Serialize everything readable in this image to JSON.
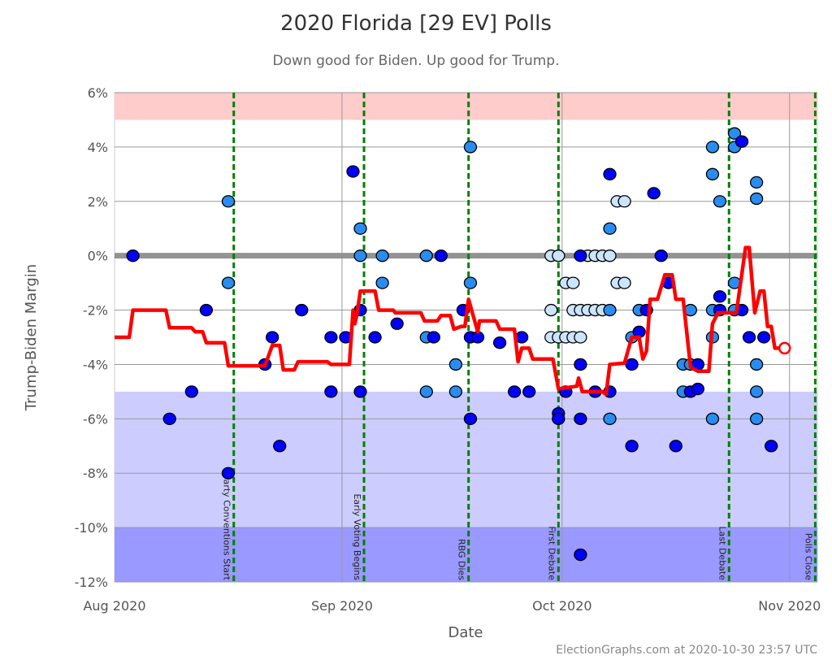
{
  "title": "2020 Florida [29 EV] Polls",
  "subtitle": "Down good for Biden. Up good for Trump.",
  "footer": "ElectionGraphs.com at 2020-10-30 23:57 UTC",
  "chart_data": {
    "type": "scatter",
    "xlabel": "Date",
    "ylabel": "Trump-Biden Margin",
    "xlim": [
      "2020-08-01",
      "2020-11-04 12:00"
    ],
    "ylim": [
      -12,
      6
    ],
    "grid": true,
    "y_ticks": [
      6,
      4,
      2,
      0,
      -2,
      -4,
      -6,
      -8,
      -10,
      -12
    ],
    "y_tick_labels": [
      "6%",
      "4%",
      "2%",
      "0%",
      "-2%",
      "-4%",
      "-6%",
      "-8%",
      "-10%",
      "-12%"
    ],
    "x_ticks": [
      {
        "date": "2020-08-01",
        "label": "Aug 2020"
      },
      {
        "date": "2020-09-01",
        "label": "Sep 2020"
      },
      {
        "date": "2020-10-01",
        "label": "Oct 2020"
      },
      {
        "date": "2020-11-01",
        "label": "Nov 2020"
      }
    ],
    "bands": [
      {
        "from": 5,
        "to": 6,
        "color": "#ffcccc"
      },
      {
        "from": -10,
        "to": -5,
        "color": "#ccccff"
      },
      {
        "from": -12,
        "to": -10,
        "color": "#9999ff"
      }
    ],
    "colors": {
      "dark": "#0000ff",
      "mid": "#2a8cf0",
      "light": "#cce5ff",
      "trend": "#ff0000",
      "event": "#008000",
      "zero": "#888888"
    },
    "events": [
      {
        "date": "2020-08-17 06:00",
        "label": "Party Conventions Start"
      },
      {
        "date": "2020-09-04 00:00",
        "label": "Early Voting Begins"
      },
      {
        "date": "2020-09-18 06:00",
        "label": "RBG Dies"
      },
      {
        "date": "2020-09-30 12:00",
        "label": "First Debate"
      },
      {
        "date": "2020-10-23 18:00",
        "label": "Last Debate"
      },
      {
        "date": "2020-11-04 12:00",
        "label": "Polls Close"
      }
    ],
    "polls": [
      [
        "2020-08-03",
        0,
        "dark"
      ],
      [
        "2020-08-08",
        -6,
        "dark"
      ],
      [
        "2020-08-11",
        -5,
        "dark"
      ],
      [
        "2020-08-13",
        -2,
        "dark"
      ],
      [
        "2020-08-16",
        2,
        "mid"
      ],
      [
        "2020-08-16",
        -1,
        "mid"
      ],
      [
        "2020-08-16",
        -8,
        "dark"
      ],
      [
        "2020-08-21",
        -4,
        "dark"
      ],
      [
        "2020-08-22",
        -3,
        "dark"
      ],
      [
        "2020-08-23",
        -7,
        "dark"
      ],
      [
        "2020-08-26",
        -2,
        "dark"
      ],
      [
        "2020-08-30",
        -3,
        "dark"
      ],
      [
        "2020-08-30",
        -5,
        "dark"
      ],
      [
        "2020-09-01",
        -3,
        "dark"
      ],
      [
        "2020-09-02",
        3.1,
        "dark"
      ],
      [
        "2020-09-03",
        -2,
        "dark"
      ],
      [
        "2020-09-03",
        -5,
        "dark"
      ],
      [
        "2020-09-03",
        1,
        "mid"
      ],
      [
        "2020-09-03",
        0,
        "mid"
      ],
      [
        "2020-09-05",
        -3,
        "dark"
      ],
      [
        "2020-09-06",
        0,
        "mid"
      ],
      [
        "2020-09-06",
        -1,
        "mid"
      ],
      [
        "2020-09-08",
        -2.5,
        "dark"
      ],
      [
        "2020-09-12",
        0,
        "mid"
      ],
      [
        "2020-09-12",
        -3,
        "mid"
      ],
      [
        "2020-09-12",
        -5,
        "mid"
      ],
      [
        "2020-09-13",
        -3,
        "dark"
      ],
      [
        "2020-09-14",
        0,
        "dark"
      ],
      [
        "2020-09-16",
        -4,
        "mid"
      ],
      [
        "2020-09-16",
        -5,
        "mid"
      ],
      [
        "2020-09-17",
        -2,
        "dark"
      ],
      [
        "2020-09-18",
        4,
        "mid"
      ],
      [
        "2020-09-18",
        -1,
        "mid"
      ],
      [
        "2020-09-18",
        -6,
        "dark"
      ],
      [
        "2020-09-18",
        -3,
        "dark"
      ],
      [
        "2020-09-19",
        -3,
        "dark"
      ],
      [
        "2020-09-22",
        -3.2,
        "dark"
      ],
      [
        "2020-09-24",
        -5,
        "dark"
      ],
      [
        "2020-09-25",
        -3,
        "dark"
      ],
      [
        "2020-09-26",
        -5,
        "dark"
      ],
      [
        "2020-09-29",
        0,
        "light"
      ],
      [
        "2020-09-30",
        0,
        "light"
      ],
      [
        "2020-09-29",
        -2,
        "light"
      ],
      [
        "2020-09-29",
        -3,
        "light"
      ],
      [
        "2020-09-30",
        -3,
        "light"
      ],
      [
        "2020-09-30",
        -5.8,
        "dark"
      ],
      [
        "2020-09-30",
        -6,
        "dark"
      ],
      [
        "2020-10-01",
        -5,
        "dark"
      ],
      [
        "2020-10-01",
        -1,
        "light"
      ],
      [
        "2020-10-02",
        -1,
        "light"
      ],
      [
        "2020-10-01",
        -3,
        "light"
      ],
      [
        "2020-10-02",
        -3,
        "light"
      ],
      [
        "2020-10-03",
        -3,
        "light"
      ],
      [
        "2020-10-02",
        -2,
        "light"
      ],
      [
        "2020-10-03",
        -2,
        "light"
      ],
      [
        "2020-10-04",
        -2,
        "light"
      ],
      [
        "2020-10-05",
        -2,
        "light"
      ],
      [
        "2020-10-06",
        -2,
        "light"
      ],
      [
        "2020-10-04",
        0,
        "light"
      ],
      [
        "2020-10-05",
        0,
        "light"
      ],
      [
        "2020-10-06",
        0,
        "light"
      ],
      [
        "2020-10-07",
        0,
        "light"
      ],
      [
        "2020-10-03",
        0,
        "dark"
      ],
      [
        "2020-10-03",
        -4,
        "dark"
      ],
      [
        "2020-10-03",
        -6,
        "dark"
      ],
      [
        "2020-10-03",
        -11,
        "dark"
      ],
      [
        "2020-10-05",
        -5,
        "dark"
      ],
      [
        "2020-10-07",
        -5,
        "dark"
      ],
      [
        "2020-10-07",
        -6,
        "mid"
      ],
      [
        "2020-10-07",
        1,
        "mid"
      ],
      [
        "2020-10-07",
        3,
        "dark"
      ],
      [
        "2020-10-07",
        -2,
        "mid"
      ],
      [
        "2020-10-08",
        2,
        "light"
      ],
      [
        "2020-10-09",
        2,
        "light"
      ],
      [
        "2020-10-08",
        -1,
        "light"
      ],
      [
        "2020-10-09",
        -1,
        "light"
      ],
      [
        "2020-10-10",
        -7,
        "dark"
      ],
      [
        "2020-10-10",
        -4,
        "dark"
      ],
      [
        "2020-10-10",
        -3,
        "mid"
      ],
      [
        "2020-10-11",
        -2.8,
        "dark"
      ],
      [
        "2020-10-11",
        -2,
        "mid"
      ],
      [
        "2020-10-12",
        -2,
        "dark"
      ],
      [
        "2020-10-13",
        2.3,
        "dark"
      ],
      [
        "2020-10-14",
        0,
        "dark"
      ],
      [
        "2020-10-15",
        -1,
        "dark"
      ],
      [
        "2020-10-16",
        -7,
        "dark"
      ],
      [
        "2020-10-18",
        -2,
        "mid"
      ],
      [
        "2020-10-17",
        -4,
        "mid"
      ],
      [
        "2020-10-18",
        -4,
        "mid"
      ],
      [
        "2020-10-19",
        -4,
        "dark"
      ],
      [
        "2020-10-17",
        -5,
        "mid"
      ],
      [
        "2020-10-18",
        -5,
        "dark"
      ],
      [
        "2020-10-19",
        -4.9,
        "dark"
      ],
      [
        "2020-10-21",
        4,
        "mid"
      ],
      [
        "2020-10-21",
        3,
        "mid"
      ],
      [
        "2020-10-22",
        2,
        "mid"
      ],
      [
        "2020-10-21",
        -2,
        "mid"
      ],
      [
        "2020-10-22",
        -2,
        "dark"
      ],
      [
        "2020-10-22",
        -1.5,
        "dark"
      ],
      [
        "2020-10-21",
        -3,
        "mid"
      ],
      [
        "2020-10-21",
        -6,
        "mid"
      ],
      [
        "2020-10-24",
        4.5,
        "mid"
      ],
      [
        "2020-10-24",
        4,
        "mid"
      ],
      [
        "2020-10-25",
        4.2,
        "dark"
      ],
      [
        "2020-10-24",
        -1,
        "mid"
      ],
      [
        "2020-10-24",
        -2,
        "mid"
      ],
      [
        "2020-10-25",
        -2,
        "dark"
      ],
      [
        "2020-10-26",
        -3,
        "dark"
      ],
      [
        "2020-10-27",
        -4,
        "mid"
      ],
      [
        "2020-10-27",
        -5,
        "mid"
      ],
      [
        "2020-10-27",
        -6,
        "mid"
      ],
      [
        "2020-10-27",
        2.7,
        "mid"
      ],
      [
        "2020-10-27",
        2.1,
        "mid"
      ],
      [
        "2020-10-28",
        -3,
        "dark"
      ],
      [
        "2020-10-29",
        -7,
        "dark"
      ]
    ],
    "trend": [
      [
        "2020-08-01 00:00",
        -3
      ],
      [
        "2020-08-03 00:00",
        -3
      ],
      [
        "2020-08-03 12:00",
        -2
      ],
      [
        "2020-08-08 00:00",
        -2
      ],
      [
        "2020-08-08 12:00",
        -2.65
      ],
      [
        "2020-08-11 12:00",
        -2.65
      ],
      [
        "2020-08-12 00:00",
        -2.8
      ],
      [
        "2020-08-13 00:00",
        -2.8
      ],
      [
        "2020-08-13 12:00",
        -3.2
      ],
      [
        "2020-08-16 00:00",
        -3.2
      ],
      [
        "2020-08-16 12:00",
        -4.05
      ],
      [
        "2020-08-21 12:00",
        -4.05
      ],
      [
        "2020-08-22 12:00",
        -3.3
      ],
      [
        "2020-08-23 12:00",
        -3.3
      ],
      [
        "2020-08-24 00:00",
        -4.2
      ],
      [
        "2020-08-25 12:00",
        -4.2
      ],
      [
        "2020-08-26 00:00",
        -3.9
      ],
      [
        "2020-08-30 00:00",
        -3.9
      ],
      [
        "2020-08-30 12:00",
        -4
      ],
      [
        "2020-09-02 00:00",
        -4
      ],
      [
        "2020-09-02 12:00",
        -2
      ],
      [
        "2020-09-02 18:00",
        -2.5
      ],
      [
        "2020-09-03 00:00",
        -2.2
      ],
      [
        "2020-09-03 12:00",
        -1.3
      ],
      [
        "2020-09-05 12:00",
        -1.3
      ],
      [
        "2020-09-06 00:00",
        -2
      ],
      [
        "2020-09-08 00:00",
        -2
      ],
      [
        "2020-09-08 06:00",
        -2.1
      ],
      [
        "2020-09-11 18:00",
        -2.1
      ],
      [
        "2020-09-12 06:00",
        -2.4
      ],
      [
        "2020-09-14 00:00",
        -2.4
      ],
      [
        "2020-09-14 12:00",
        -2.2
      ],
      [
        "2020-09-15 18:00",
        -2.2
      ],
      [
        "2020-09-16 06:00",
        -2.7
      ],
      [
        "2020-09-17 06:00",
        -2.6
      ],
      [
        "2020-09-17 18:00",
        -2.6
      ],
      [
        "2020-09-18 06:00",
        -1.6
      ],
      [
        "2020-09-19 12:00",
        -2.8
      ],
      [
        "2020-09-19 18:00",
        -2.4
      ],
      [
        "2020-09-22 00:00",
        -2.4
      ],
      [
        "2020-09-22 12:00",
        -2.7
      ],
      [
        "2020-09-24 12:00",
        -2.7
      ],
      [
        "2020-09-25 00:00",
        -3.9
      ],
      [
        "2020-09-25 12:00",
        -3.4
      ],
      [
        "2020-09-26 12:00",
        -3.4
      ],
      [
        "2020-09-27 00:00",
        -3.8
      ],
      [
        "2020-09-29 18:00",
        -3.8
      ],
      [
        "2020-09-30 12:00",
        -4.9
      ],
      [
        "2020-10-03 00:00",
        -4.8
      ],
      [
        "2020-10-03 06:00",
        -4.5
      ],
      [
        "2020-10-03 18:00",
        -5
      ],
      [
        "2020-10-06 12:00",
        -5
      ],
      [
        "2020-10-07 00:00",
        -5.1
      ],
      [
        "2020-10-07 12:00",
        -4
      ],
      [
        "2020-10-09 12:00",
        -3.95
      ],
      [
        "2020-10-10 12:00",
        -3
      ],
      [
        "2020-10-11 12:00",
        -3
      ],
      [
        "2020-10-12 00:00",
        -3.8
      ],
      [
        "2020-10-12 12:00",
        -3.5
      ],
      [
        "2020-10-13 00:00",
        -1.6
      ],
      [
        "2020-10-14 00:00",
        -1.6
      ],
      [
        "2020-10-15 00:00",
        -0.7
      ],
      [
        "2020-10-16 00:00",
        -0.7
      ],
      [
        "2020-10-16 12:00",
        -1.6
      ],
      [
        "2020-10-17 12:00",
        -1.6
      ],
      [
        "2020-10-18 12:00",
        -4.1
      ],
      [
        "2020-10-19 12:00",
        -4.25
      ],
      [
        "2020-10-21 00:00",
        -4.25
      ],
      [
        "2020-10-21 12:00",
        -2.5
      ],
      [
        "2020-10-22 06:00",
        -2.1
      ],
      [
        "2020-10-24 18:00",
        -2.1
      ],
      [
        "2020-10-26 00:00",
        0.3
      ],
      [
        "2020-10-26 12:00",
        0.3
      ],
      [
        "2020-10-27 06:00",
        -2.1
      ],
      [
        "2020-10-28 00:00",
        -1.3
      ],
      [
        "2020-10-28 12:00",
        -1.3
      ],
      [
        "2020-10-29 00:00",
        -2.6
      ],
      [
        "2020-10-29 12:00",
        -2.6
      ],
      [
        "2020-10-30 00:00",
        -3.4
      ],
      [
        "2020-10-30 18:00",
        -3.4
      ]
    ],
    "trend_end": [
      "2020-10-31 00:00",
      -3.4
    ]
  }
}
